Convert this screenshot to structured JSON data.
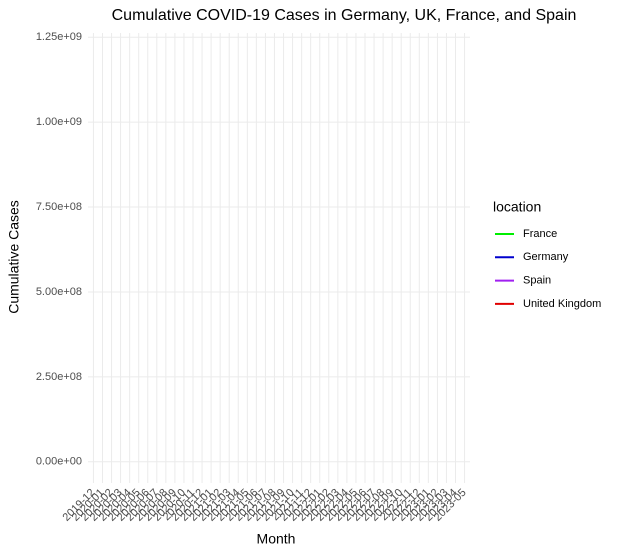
{
  "chart_data": {
    "type": "line",
    "title": "Cumulative COVID-19 Cases in Germany, UK, France, and Spain",
    "x_label": "Month",
    "y_label": "Cumulative Cases",
    "legend_title": "location",
    "categories": [
      "2019-12",
      "2020-01",
      "2020-02",
      "2020-03",
      "2020-04",
      "2020-05",
      "2020-06",
      "2020-07",
      "2020-08",
      "2020-09",
      "2020-10",
      "2020-11",
      "2020-12",
      "2021-01",
      "2021-02",
      "2021-03",
      "2021-04",
      "2021-05",
      "2021-06",
      "2021-07",
      "2021-08",
      "2021-09",
      "2021-10",
      "2021-11",
      "2021-12",
      "2022-01",
      "2022-02",
      "2022-03",
      "2022-04",
      "2022-05",
      "2022-06",
      "2022-07",
      "2022-08",
      "2022-09",
      "2022-10",
      "2022-11",
      "2022-12",
      "2023-01",
      "2023-02",
      "2023-03",
      "2023-04",
      "2023-05"
    ],
    "series": [
      {
        "name": "France",
        "color": "#00ee00",
        "values": [
          null,
          null,
          null,
          null,
          null,
          null,
          null,
          null,
          null,
          null,
          null,
          null,
          null,
          null,
          null,
          null,
          null,
          null,
          null,
          null,
          null,
          null,
          null,
          null,
          null,
          null,
          null,
          null,
          null,
          null,
          null,
          null,
          null,
          null,
          null,
          null,
          null,
          null,
          null,
          null,
          null,
          null
        ]
      },
      {
        "name": "Germany",
        "color": "#0000cd",
        "values": [
          null,
          null,
          null,
          null,
          null,
          null,
          null,
          null,
          null,
          null,
          null,
          null,
          null,
          null,
          null,
          null,
          null,
          null,
          null,
          null,
          null,
          null,
          null,
          null,
          null,
          null,
          null,
          null,
          null,
          null,
          null,
          null,
          null,
          null,
          null,
          null,
          null,
          null,
          null,
          null,
          null,
          null
        ]
      },
      {
        "name": "Spain",
        "color": "#a020f0",
        "values": [
          null,
          null,
          null,
          null,
          null,
          null,
          null,
          null,
          null,
          null,
          null,
          null,
          null,
          null,
          null,
          null,
          null,
          null,
          null,
          null,
          null,
          null,
          null,
          null,
          null,
          null,
          null,
          null,
          null,
          null,
          null,
          null,
          null,
          null,
          null,
          null,
          null,
          null,
          null,
          null,
          null,
          null
        ]
      },
      {
        "name": "United Kingdom",
        "color": "#e00000",
        "values": [
          null,
          null,
          null,
          null,
          null,
          null,
          null,
          null,
          null,
          null,
          null,
          null,
          null,
          null,
          null,
          null,
          null,
          null,
          null,
          null,
          null,
          null,
          null,
          null,
          null,
          null,
          null,
          null,
          null,
          null,
          null,
          null,
          null,
          null,
          null,
          null,
          null,
          null,
          null,
          null,
          null,
          null
        ]
      }
    ],
    "ylim": [
      -62500000,
      1262500000
    ],
    "yticks": [
      {
        "value": 0,
        "label": "0.00e+00"
      },
      {
        "value": 250000000,
        "label": "2.50e+08"
      },
      {
        "value": 500000000,
        "label": "5.00e+08"
      },
      {
        "value": 750000000,
        "label": "7.50e+08"
      },
      {
        "value": 1000000000,
        "label": "1.00e+09"
      },
      {
        "value": 1250000000,
        "label": "1.25e+09"
      }
    ],
    "grid": true,
    "legend": "right"
  }
}
